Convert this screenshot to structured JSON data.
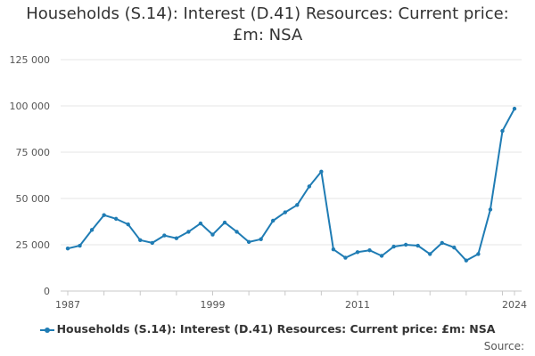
{
  "chart_data": {
    "type": "line",
    "title_lines": [
      "Households (S.14): Interest (D.41) Resources: Current price:",
      "£m: NSA"
    ],
    "xlabel": "",
    "ylabel": "",
    "x": [
      1987,
      1988,
      1989,
      1990,
      1991,
      1992,
      1993,
      1994,
      1995,
      1996,
      1997,
      1998,
      1999,
      2000,
      2001,
      2002,
      2003,
      2004,
      2005,
      2006,
      2007,
      2008,
      2009,
      2010,
      2011,
      2012,
      2013,
      2014,
      2015,
      2016,
      2017,
      2018,
      2019,
      2020,
      2021,
      2022,
      2023,
      2024
    ],
    "x_tick_labels": [
      "1987",
      "1999",
      "2011",
      "2024"
    ],
    "x_ticks": [
      1987,
      1999,
      2011,
      2024
    ],
    "xlim": [
      1987,
      2024
    ],
    "ylim": [
      0,
      125000
    ],
    "y_ticks": [
      0,
      25000,
      50000,
      75000,
      100000,
      125000
    ],
    "y_tick_labels": [
      "0",
      "25 000",
      "50 000",
      "75 000",
      "100 000",
      "125 000"
    ],
    "grid": true,
    "legend_position": "bottom",
    "series": [
      {
        "name": "Households (S.14): Interest (D.41) Resources: Current price: £m: NSA",
        "color": "#1f7cb4",
        "values": [
          23000,
          24500,
          33000,
          41000,
          39000,
          36000,
          27500,
          26000,
          30000,
          28500,
          32000,
          36500,
          30500,
          37000,
          32000,
          26500,
          28000,
          38000,
          42500,
          46500,
          56500,
          64500,
          22500,
          18000,
          21000,
          22000,
          19000,
          24000,
          25000,
          24500,
          20000,
          26000,
          23500,
          16500,
          20000,
          44000,
          86500,
          98500
        ]
      }
    ]
  },
  "source_label": "Source:"
}
